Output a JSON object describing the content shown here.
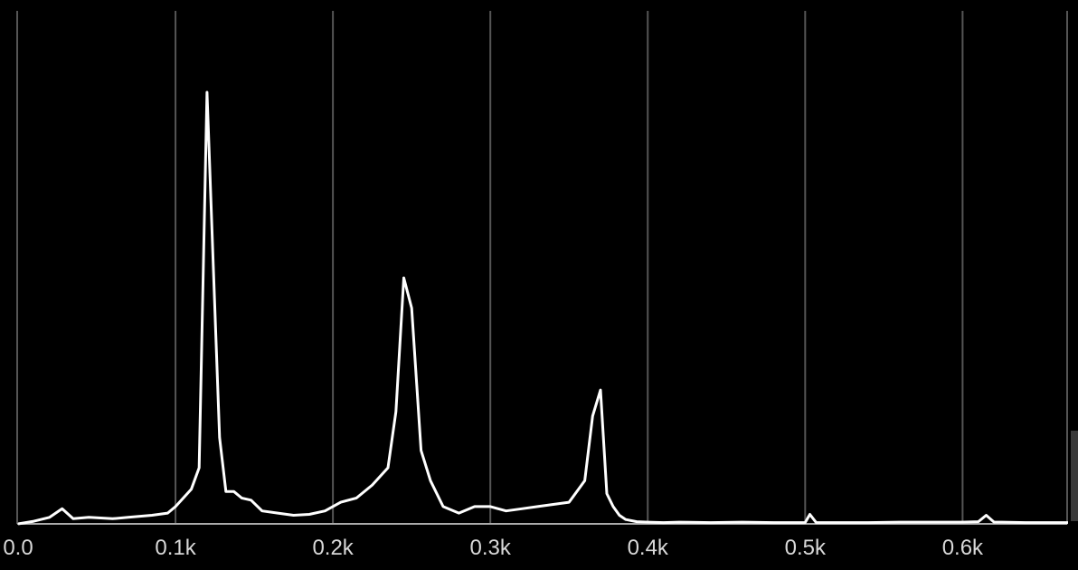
{
  "chart_data": {
    "type": "line",
    "title": "",
    "xlabel": "",
    "ylabel": "",
    "xlim": [
      0,
      0.667
    ],
    "ylim": [
      0,
      1.0
    ],
    "grid": "vertical",
    "legend": "none",
    "colors": {
      "background": "#000000",
      "line": "#ffffff",
      "grid": "#555555",
      "axis": "#aaaaaa",
      "ticks": "#d8d8d8"
    },
    "x_ticks": [
      {
        "value": 0.0,
        "label": "0.0"
      },
      {
        "value": 0.1,
        "label": "0.1k"
      },
      {
        "value": 0.2,
        "label": "0.2k"
      },
      {
        "value": 0.3,
        "label": "0.3k"
      },
      {
        "value": 0.4,
        "label": "0.4k"
      },
      {
        "value": 0.5,
        "label": "0.5k"
      },
      {
        "value": 0.6,
        "label": "0.6k"
      }
    ],
    "series": [
      {
        "x": [
          0.0,
          0.01,
          0.02,
          0.028,
          0.035,
          0.045,
          0.06,
          0.07,
          0.085,
          0.095,
          0.1,
          0.11,
          0.115,
          0.12,
          0.124,
          0.128,
          0.132,
          0.137,
          0.142,
          0.148,
          0.155,
          0.165,
          0.175,
          0.185,
          0.195,
          0.205,
          0.215,
          0.225,
          0.235,
          0.24,
          0.245,
          0.25,
          0.256,
          0.262,
          0.27,
          0.28,
          0.29,
          0.3,
          0.31,
          0.32,
          0.33,
          0.34,
          0.35,
          0.36,
          0.365,
          0.37,
          0.374,
          0.378,
          0.382,
          0.386,
          0.393,
          0.4,
          0.41,
          0.42,
          0.44,
          0.46,
          0.48,
          0.5,
          0.503,
          0.507,
          0.52,
          0.54,
          0.56,
          0.58,
          0.6,
          0.61,
          0.615,
          0.62,
          0.625,
          0.64,
          0.667
        ],
        "y": [
          0.0,
          0.006,
          0.015,
          0.035,
          0.012,
          0.015,
          0.012,
          0.015,
          0.02,
          0.025,
          0.04,
          0.08,
          0.13,
          1.0,
          0.6,
          0.2,
          0.075,
          0.075,
          0.06,
          0.055,
          0.03,
          0.025,
          0.02,
          0.022,
          0.03,
          0.05,
          0.06,
          0.09,
          0.13,
          0.26,
          0.57,
          0.5,
          0.17,
          0.1,
          0.04,
          0.025,
          0.04,
          0.04,
          0.03,
          0.035,
          0.04,
          0.045,
          0.05,
          0.1,
          0.25,
          0.31,
          0.07,
          0.04,
          0.02,
          0.01,
          0.005,
          0.004,
          0.003,
          0.004,
          0.003,
          0.004,
          0.003,
          0.003,
          0.022,
          0.003,
          0.003,
          0.003,
          0.004,
          0.004,
          0.004,
          0.005,
          0.02,
          0.004,
          0.004,
          0.003,
          0.003
        ]
      }
    ]
  }
}
